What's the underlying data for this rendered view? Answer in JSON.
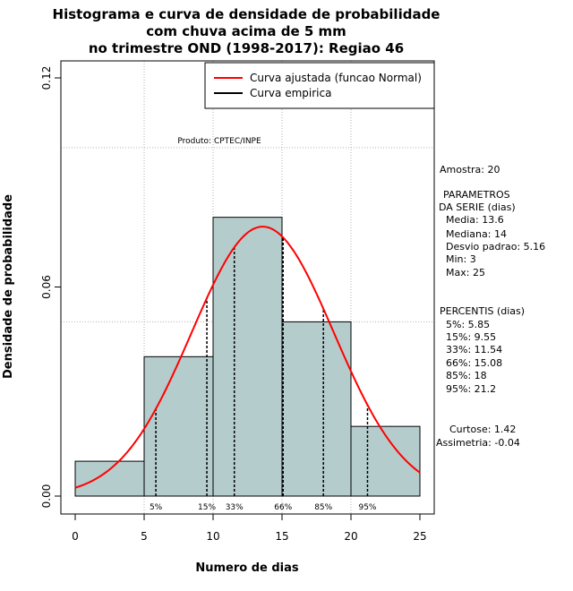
{
  "chart_data": {
    "type": "histogram",
    "title_lines": [
      "Histograma e curva de densidade de probabilidade",
      "com chuva acima de 5 mm",
      "no trimestre OND (1998-2017): Regiao 46"
    ],
    "xlabel": "Numero de dias",
    "ylabel": "Densidade de probabilidade",
    "xlim": [
      -1,
      26
    ],
    "ylim": [
      -0.005,
      0.125
    ],
    "x_ticks": [
      0,
      5,
      10,
      15,
      20,
      25
    ],
    "y_ticks": [
      0.0,
      0.06,
      0.12
    ],
    "y_tick_labels": [
      "0.00",
      "0.06",
      "0.12"
    ],
    "gridlines_x": [
      5,
      10,
      15,
      20
    ],
    "gridlines_y": [
      0.05,
      0.1
    ],
    "bins": [
      {
        "from": 0,
        "to": 5,
        "density": 0.01
      },
      {
        "from": 5,
        "to": 10,
        "density": 0.04
      },
      {
        "from": 10,
        "to": 15,
        "density": 0.08
      },
      {
        "from": 15,
        "to": 20,
        "density": 0.05
      },
      {
        "from": 20,
        "to": 25,
        "density": 0.02
      }
    ],
    "normal_fit": {
      "mean": 13.6,
      "sd": 5.16,
      "x_range": [
        0,
        25
      ]
    },
    "percentile_markers": [
      {
        "label": "5%",
        "x": 5.85
      },
      {
        "label": "15%",
        "x": 9.55
      },
      {
        "label": "33%",
        "x": 11.54
      },
      {
        "label": "66%",
        "x": 15.08
      },
      {
        "label": "85%",
        "x": 18
      },
      {
        "label": "95%",
        "x": 21.2
      }
    ],
    "legend": {
      "position": "top-right",
      "entries": [
        {
          "label": "Curva ajustada (funcao Normal)",
          "color": "#ff0000"
        },
        {
          "label": "Curva empirica",
          "color": "#000000"
        }
      ]
    },
    "product_label": "Produto: CPTEC/INPE",
    "colors": {
      "bar_fill": "#b5cccc",
      "curve": "#ff0000",
      "grid": "#b0b0b0"
    }
  },
  "stats_panel": {
    "sample": "Amostra: 20",
    "params_header": "PARAMETROS",
    "params_subheader": "DA SERIE (dias)",
    "params": [
      "Media: 13.6",
      "Mediana: 14",
      "Desvio padrao: 5.16",
      "Min: 3",
      "Max: 25"
    ],
    "percentiles_header": "PERCENTIS (dias)",
    "percentiles": [
      "5%: 5.85",
      "15%: 9.55",
      "33%: 11.54",
      "66%: 15.08",
      "85%: 18",
      "95%: 21.2"
    ],
    "kurtosis": "Curtose: 1.42",
    "skewness": "Assimetria: -0.04"
  }
}
